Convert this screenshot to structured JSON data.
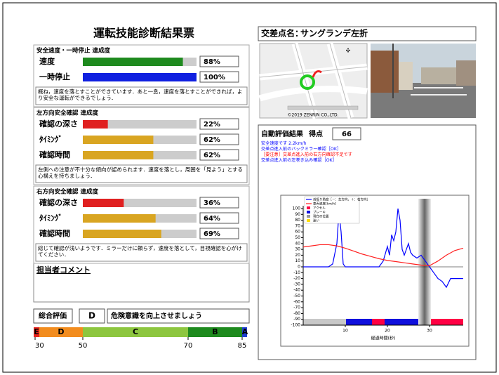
{
  "header": {
    "title": "運転技能診断結果票"
  },
  "sections": [
    {
      "title": "安全速度・一時停止 達成度",
      "rows": [
        {
          "label": "速度",
          "value": 88,
          "value_label": "88%",
          "color": "#1e8a1e"
        },
        {
          "label": "一時停止",
          "value": 100,
          "value_label": "100%",
          "color": "#1020e0"
        }
      ],
      "comment": "概ね，速度を落とすことができています．あと一息，速度を落とすことができれば，より安全な運転ができるでしょう．"
    },
    {
      "title": "左方向安全確認 達成度",
      "rows": [
        {
          "label": "確認の深さ",
          "value": 22,
          "value_label": "22%",
          "color": "#e02020"
        },
        {
          "label": "ﾀｲﾐﾝｸﾞ",
          "value": 62,
          "value_label": "62%",
          "color": "#d9a521"
        },
        {
          "label": "確認時間",
          "value": 62,
          "value_label": "62%",
          "color": "#d9a521"
        }
      ],
      "comment": "左側への注意が不十分な傾向が認められます．速度を落とし，周囲を「見よう」とする心構えを持ちましょう．"
    },
    {
      "title": "右方向安全確認 達成度",
      "rows": [
        {
          "label": "確認の深さ",
          "value": 36,
          "value_label": "36%",
          "color": "#e02020"
        },
        {
          "label": "ﾀｲﾐﾝｸﾞ",
          "value": 64,
          "value_label": "64%",
          "color": "#d9a521"
        },
        {
          "label": "確認時間",
          "value": 69,
          "value_label": "69%",
          "color": "#d9a521"
        }
      ],
      "comment": "総じて確認が浅いようです．ミラーだけに頼らず，速度を落として，目視確認を心がけてください．"
    }
  ],
  "staff_comment": {
    "title": "担当者コメント"
  },
  "overall": {
    "label": "総合評価",
    "grade": "D",
    "message": "危険意識を向上させましょう"
  },
  "grade_scale": {
    "grades": [
      "E",
      "D",
      "C",
      "B",
      "A"
    ],
    "ticks": [
      30,
      50,
      70,
      85
    ]
  },
  "intersection": {
    "label": "交差点名：",
    "name": "サングランデ左折"
  },
  "map_credit": "©2019 ZENRIN CO.,LTD.",
  "result": {
    "label": "自動評価結果",
    "score_label": "得点",
    "score": 66,
    "messages": [
      {
        "text": "安全速度です 2.2km/h",
        "color": "#0000ff"
      },
      {
        "text": "交差点進入前のバックミラー確認［OK］",
        "color": "#0000ff"
      },
      {
        "text": "［要注意］交差点進入前の右方向確認不足です",
        "color": "#ff0000"
      },
      {
        "text": "交差点進入前の左巻き込み確認［OK］",
        "color": "#0000ff"
      }
    ]
  },
  "chart": {
    "type": "line",
    "x_label": "経過時間(秒)",
    "xlim": [
      0,
      38
    ],
    "ylim": [
      -100,
      100
    ],
    "xticks": [
      10,
      20,
      30
    ],
    "yticks": [
      100,
      90,
      80,
      70,
      60,
      50,
      40,
      30,
      20,
      10,
      0,
      -10,
      -20,
      -30,
      -40,
      -50,
      -60,
      -70,
      -80,
      -90,
      -100
    ],
    "series": [
      {
        "name": "首振り角度［－：左方向，＋：右方向］",
        "color": "#0000ff",
        "x": [
          0,
          2,
          4,
          6,
          7,
          8,
          8.5,
          9,
          9.5,
          10,
          12,
          14,
          16,
          18,
          19,
          20,
          20.5,
          21,
          21.5,
          22,
          22.5,
          23,
          23.5,
          24,
          25,
          25.5,
          26,
          27,
          28,
          29,
          30,
          31,
          32,
          33,
          34,
          35,
          36,
          37,
          38
        ],
        "values": [
          0,
          0,
          0,
          0,
          5,
          40,
          95,
          60,
          5,
          0,
          0,
          0,
          0,
          0,
          10,
          35,
          20,
          55,
          45,
          60,
          100,
          80,
          30,
          20,
          40,
          25,
          20,
          15,
          20,
          10,
          0,
          -10,
          -20,
          -25,
          -35,
          -20,
          -20,
          -20,
          -20
        ]
      },
      {
        "name": "車両速度[km/h]",
        "color": "#ff2020",
        "x": [
          0,
          2,
          4,
          6,
          8,
          10,
          12,
          14,
          16,
          18,
          20,
          22,
          24,
          26,
          28,
          30,
          32,
          34,
          36,
          38
        ],
        "values": [
          34,
          36,
          38,
          38,
          36,
          32,
          27,
          22,
          18,
          14,
          11,
          9,
          7,
          5,
          3,
          2,
          10,
          20,
          28,
          32
        ]
      }
    ],
    "strip_legend": [
      {
        "name": "アクセル",
        "color": "#ff0044"
      },
      {
        "name": "ブレーキ",
        "color": "#1010dd"
      },
      {
        "name": "現在の位置",
        "color": "#999999"
      },
      {
        "name": "迷い",
        "color": "#ffdd00"
      }
    ]
  }
}
